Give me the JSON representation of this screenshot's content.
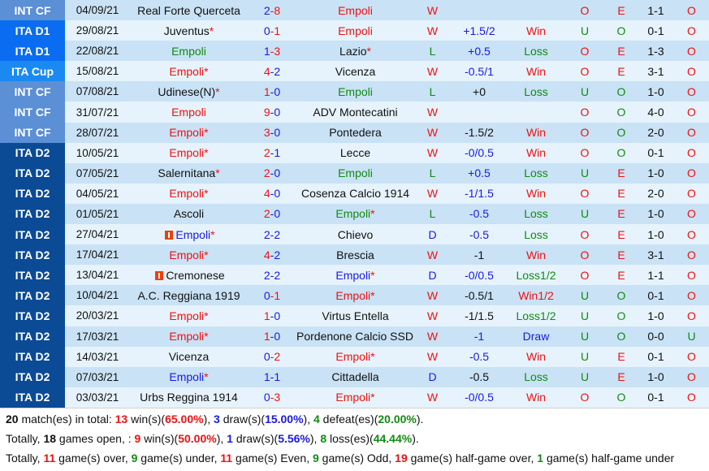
{
  "league_colors": {
    "INT CF": "#5b8fd6",
    "ITA D1": "#0a6cf0",
    "ITA Cup": "#1a8af2",
    "ITA D2": "#0b4a95"
  },
  "text_colors": {
    "red": "#ee1111",
    "blue": "#1a1adf",
    "green": "#128a12",
    "black": "#111111"
  },
  "matches": [
    {
      "league": "INT CF",
      "date": "04/09/21",
      "home": "Real Forte Querceta",
      "home_star": false,
      "home_color": "black",
      "home_card": false,
      "score_home": "2",
      "score_home_color": "blue",
      "score_away": "8",
      "score_away_color": "red",
      "away": "Empoli",
      "away_star": false,
      "away_color": "red",
      "away_card": false,
      "result": "W",
      "result_color": "red",
      "handicap": "",
      "handicap_color": "black",
      "hc_result": "",
      "hc_color": "red",
      "ou": "O",
      "ou_color": "red",
      "oe": "E",
      "oe_color": "red",
      "ht": "1-1",
      "ht_ou": "O",
      "ht_ou_color": "red"
    },
    {
      "league": "ITA D1",
      "date": "29/08/21",
      "home": "Juventus",
      "home_star": true,
      "home_color": "black",
      "home_card": false,
      "score_home": "0",
      "score_home_color": "blue",
      "score_away": "1",
      "score_away_color": "red",
      "away": "Empoli",
      "away_star": false,
      "away_color": "red",
      "away_card": false,
      "result": "W",
      "result_color": "red",
      "handicap": "+1.5/2",
      "handicap_color": "blue",
      "hc_result": "Win",
      "hc_color": "red",
      "ou": "U",
      "ou_color": "green",
      "oe": "O",
      "oe_color": "green",
      "ht": "0-1",
      "ht_ou": "O",
      "ht_ou_color": "red"
    },
    {
      "league": "ITA D1",
      "date": "22/08/21",
      "home": "Empoli",
      "home_star": false,
      "home_color": "green",
      "home_card": false,
      "score_home": "1",
      "score_home_color": "blue",
      "score_away": "3",
      "score_away_color": "red",
      "away": "Lazio",
      "away_star": true,
      "away_color": "black",
      "away_card": false,
      "result": "L",
      "result_color": "green",
      "handicap": "+0.5",
      "handicap_color": "blue",
      "hc_result": "Loss",
      "hc_color": "green",
      "ou": "O",
      "ou_color": "red",
      "oe": "E",
      "oe_color": "red",
      "ht": "1-3",
      "ht_ou": "O",
      "ht_ou_color": "red"
    },
    {
      "league": "ITA Cup",
      "date": "15/08/21",
      "home": "Empoli",
      "home_star": true,
      "home_color": "red",
      "home_card": false,
      "score_home": "4",
      "score_home_color": "red",
      "score_away": "2",
      "score_away_color": "blue",
      "away": "Vicenza",
      "away_star": false,
      "away_color": "black",
      "away_card": false,
      "result": "W",
      "result_color": "red",
      "handicap": "-0.5/1",
      "handicap_color": "blue",
      "hc_result": "Win",
      "hc_color": "red",
      "ou": "O",
      "ou_color": "red",
      "oe": "E",
      "oe_color": "red",
      "ht": "3-1",
      "ht_ou": "O",
      "ht_ou_color": "red"
    },
    {
      "league": "INT CF",
      "date": "07/08/21",
      "home": "Udinese(N)",
      "home_star": true,
      "home_color": "black",
      "home_card": false,
      "score_home": "1",
      "score_home_color": "red",
      "score_away": "0",
      "score_away_color": "blue",
      "away": "Empoli",
      "away_star": false,
      "away_color": "green",
      "away_card": false,
      "result": "L",
      "result_color": "green",
      "handicap": "+0",
      "handicap_color": "black",
      "hc_result": "Loss",
      "hc_color": "green",
      "ou": "U",
      "ou_color": "green",
      "oe": "O",
      "oe_color": "green",
      "ht": "1-0",
      "ht_ou": "O",
      "ht_ou_color": "red"
    },
    {
      "league": "INT CF",
      "date": "31/07/21",
      "home": "Empoli",
      "home_star": false,
      "home_color": "red",
      "home_card": false,
      "score_home": "9",
      "score_home_color": "red",
      "score_away": "0",
      "score_away_color": "blue",
      "away": "ADV Montecatini",
      "away_star": false,
      "away_color": "black",
      "away_card": false,
      "result": "W",
      "result_color": "red",
      "handicap": "",
      "handicap_color": "black",
      "hc_result": "",
      "hc_color": "red",
      "ou": "O",
      "ou_color": "red",
      "oe": "O",
      "oe_color": "green",
      "ht": "4-0",
      "ht_ou": "O",
      "ht_ou_color": "red"
    },
    {
      "league": "INT CF",
      "date": "28/07/21",
      "home": "Empoli",
      "home_star": true,
      "home_color": "red",
      "home_card": false,
      "score_home": "3",
      "score_home_color": "red",
      "score_away": "0",
      "score_away_color": "blue",
      "away": "Pontedera",
      "away_star": false,
      "away_color": "black",
      "away_card": false,
      "result": "W",
      "result_color": "red",
      "handicap": "-1.5/2",
      "handicap_color": "black",
      "hc_result": "Win",
      "hc_color": "red",
      "ou": "O",
      "ou_color": "red",
      "oe": "O",
      "oe_color": "green",
      "ht": "2-0",
      "ht_ou": "O",
      "ht_ou_color": "red"
    },
    {
      "league": "ITA D2",
      "date": "10/05/21",
      "home": "Empoli",
      "home_star": true,
      "home_color": "red",
      "home_card": false,
      "score_home": "2",
      "score_home_color": "red",
      "score_away": "1",
      "score_away_color": "blue",
      "away": "Lecce",
      "away_star": false,
      "away_color": "black",
      "away_card": false,
      "result": "W",
      "result_color": "red",
      "handicap": "-0/0.5",
      "handicap_color": "blue",
      "hc_result": "Win",
      "hc_color": "red",
      "ou": "O",
      "ou_color": "red",
      "oe": "O",
      "oe_color": "green",
      "ht": "0-1",
      "ht_ou": "O",
      "ht_ou_color": "red"
    },
    {
      "league": "ITA D2",
      "date": "07/05/21",
      "home": "Salernitana",
      "home_star": true,
      "home_color": "black",
      "home_card": false,
      "score_home": "2",
      "score_home_color": "red",
      "score_away": "0",
      "score_away_color": "blue",
      "away": "Empoli",
      "away_star": false,
      "away_color": "green",
      "away_card": false,
      "result": "L",
      "result_color": "green",
      "handicap": "+0.5",
      "handicap_color": "blue",
      "hc_result": "Loss",
      "hc_color": "green",
      "ou": "U",
      "ou_color": "green",
      "oe": "E",
      "oe_color": "red",
      "ht": "1-0",
      "ht_ou": "O",
      "ht_ou_color": "red"
    },
    {
      "league": "ITA D2",
      "date": "04/05/21",
      "home": "Empoli",
      "home_star": true,
      "home_color": "red",
      "home_card": false,
      "score_home": "4",
      "score_home_color": "red",
      "score_away": "0",
      "score_away_color": "blue",
      "away": "Cosenza Calcio 1914",
      "away_star": false,
      "away_color": "black",
      "away_card": false,
      "result": "W",
      "result_color": "red",
      "handicap": "-1/1.5",
      "handicap_color": "blue",
      "hc_result": "Win",
      "hc_color": "red",
      "ou": "O",
      "ou_color": "red",
      "oe": "E",
      "oe_color": "red",
      "ht": "2-0",
      "ht_ou": "O",
      "ht_ou_color": "red"
    },
    {
      "league": "ITA D2",
      "date": "01/05/21",
      "home": "Ascoli",
      "home_star": false,
      "home_color": "black",
      "home_card": false,
      "score_home": "2",
      "score_home_color": "red",
      "score_away": "0",
      "score_away_color": "blue",
      "away": "Empoli",
      "away_star": true,
      "away_color": "green",
      "away_card": false,
      "result": "L",
      "result_color": "green",
      "handicap": "-0.5",
      "handicap_color": "blue",
      "hc_result": "Loss",
      "hc_color": "green",
      "ou": "U",
      "ou_color": "green",
      "oe": "E",
      "oe_color": "red",
      "ht": "1-0",
      "ht_ou": "O",
      "ht_ou_color": "red"
    },
    {
      "league": "ITA D2",
      "date": "27/04/21",
      "home": "Empoli",
      "home_star": true,
      "home_color": "blue",
      "home_card": true,
      "score_home": "2",
      "score_home_color": "blue",
      "score_away": "2",
      "score_away_color": "blue",
      "away": "Chievo",
      "away_star": false,
      "away_color": "black",
      "away_card": false,
      "result": "D",
      "result_color": "blue",
      "handicap": "-0.5",
      "handicap_color": "blue",
      "hc_result": "Loss",
      "hc_color": "green",
      "ou": "O",
      "ou_color": "red",
      "oe": "E",
      "oe_color": "red",
      "ht": "1-0",
      "ht_ou": "O",
      "ht_ou_color": "red"
    },
    {
      "league": "ITA D2",
      "date": "17/04/21",
      "home": "Empoli",
      "home_star": true,
      "home_color": "red",
      "home_card": false,
      "score_home": "4",
      "score_home_color": "red",
      "score_away": "2",
      "score_away_color": "blue",
      "away": "Brescia",
      "away_star": false,
      "away_color": "black",
      "away_card": false,
      "result": "W",
      "result_color": "red",
      "handicap": "-1",
      "handicap_color": "black",
      "hc_result": "Win",
      "hc_color": "red",
      "ou": "O",
      "ou_color": "red",
      "oe": "E",
      "oe_color": "red",
      "ht": "3-1",
      "ht_ou": "O",
      "ht_ou_color": "red"
    },
    {
      "league": "ITA D2",
      "date": "13/04/21",
      "home": "Cremonese",
      "home_star": false,
      "home_color": "black",
      "home_card": true,
      "score_home": "2",
      "score_home_color": "blue",
      "score_away": "2",
      "score_away_color": "blue",
      "away": "Empoli",
      "away_star": true,
      "away_color": "blue",
      "away_card": false,
      "result": "D",
      "result_color": "blue",
      "handicap": "-0/0.5",
      "handicap_color": "blue",
      "hc_result": "Loss1/2",
      "hc_color": "green",
      "ou": "O",
      "ou_color": "red",
      "oe": "E",
      "oe_color": "red",
      "ht": "1-1",
      "ht_ou": "O",
      "ht_ou_color": "red"
    },
    {
      "league": "ITA D2",
      "date": "10/04/21",
      "home": "A.C. Reggiana 1919",
      "home_star": false,
      "home_color": "black",
      "home_card": false,
      "score_home": "0",
      "score_home_color": "blue",
      "score_away": "1",
      "score_away_color": "red",
      "away": "Empoli",
      "away_star": true,
      "away_color": "red",
      "away_card": false,
      "result": "W",
      "result_color": "red",
      "handicap": "-0.5/1",
      "handicap_color": "black",
      "hc_result": "Win1/2",
      "hc_color": "red",
      "ou": "U",
      "ou_color": "green",
      "oe": "O",
      "oe_color": "green",
      "ht": "0-1",
      "ht_ou": "O",
      "ht_ou_color": "red"
    },
    {
      "league": "ITA D2",
      "date": "20/03/21",
      "home": "Empoli",
      "home_star": true,
      "home_color": "red",
      "home_card": false,
      "score_home": "1",
      "score_home_color": "red",
      "score_away": "0",
      "score_away_color": "blue",
      "away": "Virtus Entella",
      "away_star": false,
      "away_color": "black",
      "away_card": false,
      "result": "W",
      "result_color": "red",
      "handicap": "-1/1.5",
      "handicap_color": "black",
      "hc_result": "Loss1/2",
      "hc_color": "green",
      "ou": "U",
      "ou_color": "green",
      "oe": "O",
      "oe_color": "green",
      "ht": "1-0",
      "ht_ou": "O",
      "ht_ou_color": "red"
    },
    {
      "league": "ITA D2",
      "date": "17/03/21",
      "home": "Empoli",
      "home_star": true,
      "home_color": "red",
      "home_card": false,
      "score_home": "1",
      "score_home_color": "red",
      "score_away": "0",
      "score_away_color": "blue",
      "away": "Pordenone Calcio SSD",
      "away_star": false,
      "away_color": "black",
      "away_card": true,
      "result": "W",
      "result_color": "red",
      "handicap": "-1",
      "handicap_color": "blue",
      "hc_result": "Draw",
      "hc_color": "blue",
      "ou": "U",
      "ou_color": "green",
      "oe": "O",
      "oe_color": "green",
      "ht": "0-0",
      "ht_ou": "U",
      "ht_ou_color": "green"
    },
    {
      "league": "ITA D2",
      "date": "14/03/21",
      "home": "Vicenza",
      "home_star": false,
      "home_color": "black",
      "home_card": false,
      "score_home": "0",
      "score_home_color": "blue",
      "score_away": "2",
      "score_away_color": "red",
      "away": "Empoli",
      "away_star": true,
      "away_color": "red",
      "away_card": false,
      "result": "W",
      "result_color": "red",
      "handicap": "-0.5",
      "handicap_color": "blue",
      "hc_result": "Win",
      "hc_color": "red",
      "ou": "U",
      "ou_color": "green",
      "oe": "E",
      "oe_color": "red",
      "ht": "0-1",
      "ht_ou": "O",
      "ht_ou_color": "red"
    },
    {
      "league": "ITA D2",
      "date": "07/03/21",
      "home": "Empoli",
      "home_star": true,
      "home_color": "blue",
      "home_card": false,
      "score_home": "1",
      "score_home_color": "blue",
      "score_away": "1",
      "score_away_color": "blue",
      "away": "Cittadella",
      "away_star": false,
      "away_color": "black",
      "away_card": false,
      "result": "D",
      "result_color": "blue",
      "handicap": "-0.5",
      "handicap_color": "black",
      "hc_result": "Loss",
      "hc_color": "green",
      "ou": "U",
      "ou_color": "green",
      "oe": "E",
      "oe_color": "red",
      "ht": "1-0",
      "ht_ou": "O",
      "ht_ou_color": "red"
    },
    {
      "league": "ITA D2",
      "date": "03/03/21",
      "home": "Urbs Reggina 1914",
      "home_star": false,
      "home_color": "black",
      "home_card": false,
      "score_home": "0",
      "score_home_color": "blue",
      "score_away": "3",
      "score_away_color": "red",
      "away": "Empoli",
      "away_star": true,
      "away_color": "red",
      "away_card": false,
      "result": "W",
      "result_color": "red",
      "handicap": "-0/0.5",
      "handicap_color": "blue",
      "hc_result": "Win",
      "hc_color": "red",
      "ou": "O",
      "ou_color": "red",
      "oe": "O",
      "oe_color": "green",
      "ht": "0-1",
      "ht_ou": "O",
      "ht_ou_color": "red"
    }
  ],
  "score_separator": "-",
  "star": "*",
  "summary": {
    "line1": [
      {
        "t": "20",
        "s": "black"
      },
      {
        "t": " match(es) in total: "
      },
      {
        "t": "13",
        "s": "red"
      },
      {
        "t": " win(s)("
      },
      {
        "t": "65.00%",
        "s": "red"
      },
      {
        "t": "), "
      },
      {
        "t": "3",
        "s": "blue"
      },
      {
        "t": " draw(s)("
      },
      {
        "t": "15.00%",
        "s": "blue"
      },
      {
        "t": "), "
      },
      {
        "t": "4",
        "s": "green"
      },
      {
        "t": " defeat(es)("
      },
      {
        "t": "20.00%",
        "s": "green"
      },
      {
        "t": ")."
      }
    ],
    "line2": [
      {
        "t": "Totally, "
      },
      {
        "t": "18",
        "s": "black"
      },
      {
        "t": " games open, : "
      },
      {
        "t": "9",
        "s": "red"
      },
      {
        "t": " win(s)("
      },
      {
        "t": "50.00%",
        "s": "red"
      },
      {
        "t": "), "
      },
      {
        "t": "1",
        "s": "blue"
      },
      {
        "t": " draw(s)("
      },
      {
        "t": "5.56%",
        "s": "blue"
      },
      {
        "t": "), "
      },
      {
        "t": "8",
        "s": "green"
      },
      {
        "t": " loss(es)("
      },
      {
        "t": "44.44%",
        "s": "green"
      },
      {
        "t": ")."
      }
    ],
    "line3": [
      {
        "t": "Totally, "
      },
      {
        "t": "11",
        "s": "red"
      },
      {
        "t": " game(s) over, "
      },
      {
        "t": "9",
        "s": "green"
      },
      {
        "t": " game(s) under, "
      },
      {
        "t": "11",
        "s": "red"
      },
      {
        "t": " game(s) Even, "
      },
      {
        "t": "9",
        "s": "green"
      },
      {
        "t": " game(s) Odd, "
      },
      {
        "t": "19",
        "s": "red"
      },
      {
        "t": " game(s) half-game over, "
      },
      {
        "t": "1",
        "s": "green"
      },
      {
        "t": " game(s) half-game under"
      }
    ]
  }
}
